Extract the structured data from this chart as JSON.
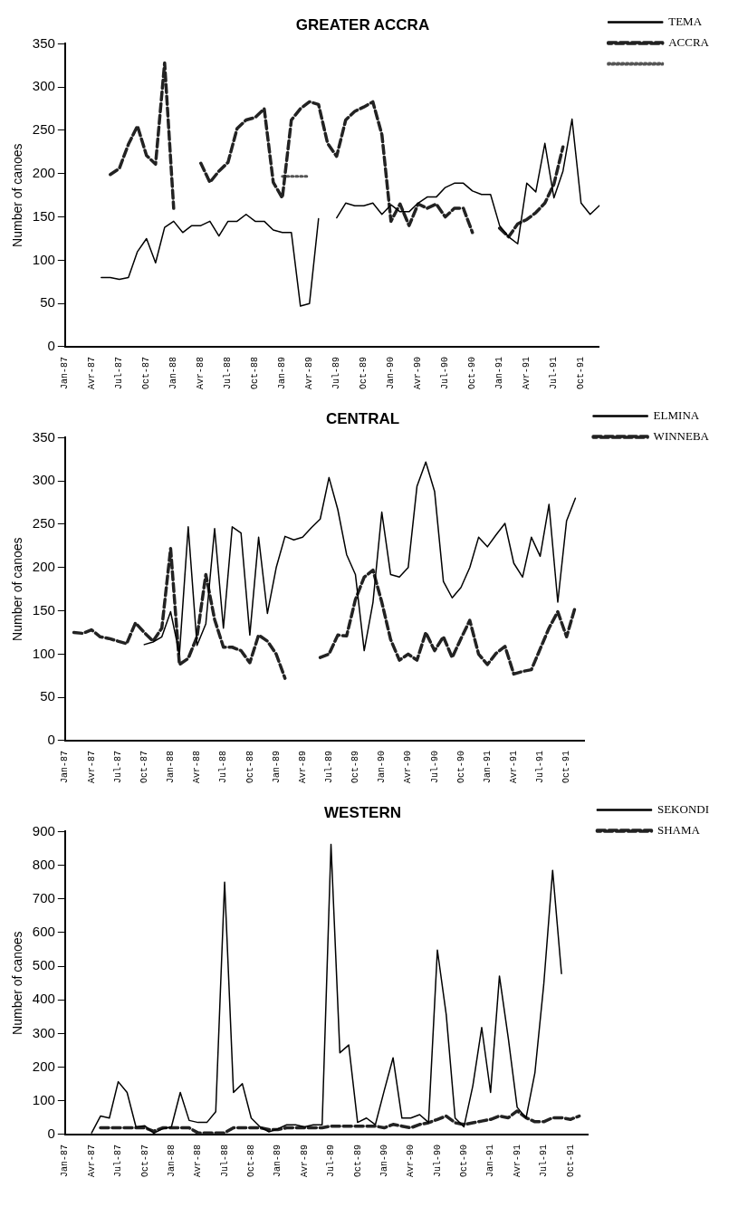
{
  "chart_data": [
    {
      "type": "line",
      "title": "GREATER ACCRA",
      "ylabel": "Number of canoes",
      "legend": "top right",
      "grid": false,
      "categories": [
        "Jan-87",
        null,
        null,
        "Avr-87",
        null,
        null,
        "Jul-87",
        null,
        null,
        "Oct-87",
        null,
        null,
        "Jan-88",
        null,
        null,
        "Avr-88",
        null,
        null,
        "Jul-88",
        null,
        null,
        "Oct-88",
        null,
        null,
        "Jan-89",
        null,
        null,
        "Avr-89",
        null,
        null,
        "Jul-89",
        null,
        null,
        "Oct-89",
        null,
        null,
        "Jan-90",
        null,
        null,
        "Avr-90",
        null,
        null,
        "Jul-90",
        null,
        null,
        "Oct-90",
        null,
        null,
        "Jan-91",
        null,
        null,
        "Avr-91",
        null,
        null,
        "Jul-91",
        null,
        null,
        "Oct-91",
        null,
        null
      ],
      "ylim": [
        0,
        350
      ],
      "yticks": [
        0,
        50,
        100,
        150,
        200,
        250,
        300,
        350
      ],
      "series": [
        {
          "name": "TEMA",
          "color": "#000000",
          "line_style": "solid",
          "values": [
            null,
            null,
            null,
            null,
            80,
            80,
            78,
            80,
            110,
            125,
            97,
            138,
            145,
            132,
            140,
            140,
            145,
            128,
            145,
            145,
            153,
            145,
            145,
            135,
            132,
            132,
            47,
            50,
            148,
            null,
            149,
            166,
            163,
            163,
            166,
            153,
            164,
            156,
            156,
            166,
            173,
            173,
            184,
            189,
            189,
            180,
            176,
            176,
            140,
            127,
            119,
            189,
            179,
            235,
            172,
            203,
            263,
            166,
            153,
            163
          ]
        },
        {
          "name": "ACCRA",
          "color": "#222222",
          "line_style": "dashed",
          "values": [
            null,
            null,
            null,
            null,
            null,
            199,
            206,
            234,
            255,
            221,
            211,
            328,
            160,
            null,
            null,
            212,
            190,
            203,
            213,
            252,
            262,
            265,
            275,
            190,
            172,
            262,
            275,
            283,
            280,
            235,
            220,
            262,
            272,
            277,
            283,
            245,
            145,
            165,
            140,
            165,
            160,
            165,
            150,
            160,
            160,
            132,
            null,
            null,
            137,
            127,
            142,
            147,
            155,
            166,
            188,
            231,
            null,
            null,
            null,
            null
          ]
        },
        {
          "color": "#555555",
          "line_style": "dotted",
          "values": [
            null,
            null,
            null,
            null,
            null,
            null,
            null,
            null,
            null,
            null,
            null,
            null,
            null,
            null,
            null,
            null,
            null,
            null,
            null,
            null,
            null,
            null,
            null,
            null,
            197,
            197,
            197,
            197,
            null,
            null,
            null,
            null,
            null,
            null,
            null,
            null,
            null,
            null,
            null,
            null,
            null,
            null,
            null,
            null,
            null,
            null,
            null,
            null,
            null,
            null,
            null,
            null,
            null,
            null,
            null,
            null,
            null,
            null,
            null,
            null
          ]
        }
      ]
    },
    {
      "type": "line",
      "title": "CENTRAL",
      "ylabel": "Number of canoes",
      "legend": "top right",
      "grid": false,
      "categories": [
        "Jan-87",
        null,
        null,
        "Avr-87",
        null,
        null,
        "Jul-87",
        null,
        null,
        "Oct-87",
        null,
        null,
        "Jan-88",
        null,
        null,
        "Avr-88",
        null,
        null,
        "Jul-88",
        null,
        null,
        "Oct-88",
        null,
        null,
        "Jan-89",
        null,
        null,
        "Avr-89",
        null,
        null,
        "Jul-89",
        null,
        null,
        "Oct-89",
        null,
        null,
        "Jan-90",
        null,
        null,
        "Avr-90",
        null,
        null,
        "Jul-90",
        null,
        null,
        "Oct-90",
        null,
        null,
        "Jan-91",
        null,
        null,
        "Avr-91",
        null,
        null,
        "Jul-91",
        null,
        null,
        "Oct-91",
        null,
        null
      ],
      "ylim": [
        0,
        350
      ],
      "yticks": [
        0,
        50,
        100,
        150,
        200,
        250,
        300,
        350
      ],
      "series": [
        {
          "name": "ELMINA",
          "color": "#000000",
          "line_style": "solid",
          "values": [
            null,
            null,
            null,
            null,
            null,
            null,
            null,
            null,
            null,
            111,
            114,
            120,
            149,
            100,
            247,
            110,
            135,
            245,
            130,
            247,
            240,
            122,
            235,
            147,
            200,
            236,
            232,
            235,
            246,
            256,
            304,
            267,
            215,
            192,
            104,
            160,
            264,
            192,
            189,
            200,
            294,
            322,
            288,
            184,
            165,
            177,
            200,
            235,
            224,
            238,
            251,
            205,
            189,
            235,
            213,
            273,
            160,
            254,
            280,
            null
          ]
        },
        {
          "name": "WINNEBA",
          "color": "#222222",
          "line_style": "dashed",
          "values": [
            null,
            125,
            124,
            128,
            120,
            118,
            115,
            112,
            136,
            125,
            115,
            130,
            222,
            88,
            95,
            120,
            192,
            140,
            108,
            108,
            104,
            90,
            122,
            115,
            100,
            72,
            null,
            null,
            null,
            96,
            100,
            122,
            121,
            163,
            189,
            197,
            160,
            117,
            93,
            100,
            93,
            125,
            104,
            120,
            96,
            118,
            139,
            100,
            88,
            101,
            109,
            77,
            80,
            82,
            106,
            130,
            149,
            120,
            155,
            null
          ]
        }
      ]
    },
    {
      "type": "line",
      "title": "WESTERN",
      "ylabel": "Number of canoes",
      "legend": "top right",
      "grid": false,
      "categories": [
        "Jan-87",
        null,
        null,
        "Avr-87",
        null,
        null,
        "Jul-87",
        null,
        null,
        "Oct-87",
        null,
        null,
        "Jan-88",
        null,
        null,
        "Avr-88",
        null,
        null,
        "Jul-88",
        null,
        null,
        "Oct-88",
        null,
        null,
        "Jan-89",
        null,
        null,
        "Avr-89",
        null,
        null,
        "Jul-89",
        null,
        null,
        "Oct-89",
        null,
        null,
        "Jan-90",
        null,
        null,
        "Avr-90",
        null,
        null,
        "Jul-90",
        null,
        null,
        "Oct-90",
        null,
        null,
        "Jan-91",
        null,
        null,
        "Avr-91",
        null,
        null,
        "Jul-91",
        null,
        null,
        "Oct-91",
        null,
        null
      ],
      "ylim": [
        0,
        900
      ],
      "yticks": [
        0,
        100,
        200,
        300,
        400,
        500,
        600,
        700,
        800,
        900
      ],
      "series": [
        {
          "name": "SEKONDI",
          "color": "#000000",
          "line_style": "solid",
          "values": [
            null,
            null,
            null,
            5,
            55,
            49,
            157,
            125,
            23,
            26,
            4,
            17,
            23,
            125,
            42,
            36,
            36,
            68,
            750,
            125,
            151,
            49,
            23,
            8,
            17,
            29,
            29,
            23,
            29,
            29,
            862,
            243,
            266,
            36,
            49,
            29,
            130,
            228,
            49,
            49,
            59,
            36,
            548,
            356,
            49,
            23,
            145,
            318,
            125,
            471,
            286,
            81,
            49,
            183,
            446,
            785,
            478,
            null,
            null,
            null
          ]
        },
        {
          "name": "SHAMA",
          "color": "#222222",
          "line_style": "dashed",
          "values": [
            null,
            null,
            null,
            null,
            20,
            20,
            20,
            20,
            20,
            20,
            10,
            20,
            20,
            20,
            20,
            5,
            5,
            5,
            5,
            20,
            20,
            20,
            20,
            15,
            15,
            20,
            20,
            20,
            20,
            20,
            25,
            25,
            25,
            25,
            25,
            25,
            20,
            30,
            25,
            20,
            30,
            35,
            45,
            55,
            35,
            30,
            35,
            40,
            45,
            55,
            50,
            70,
            50,
            38,
            38,
            50,
            50,
            45,
            55,
            null
          ]
        }
      ]
    }
  ]
}
